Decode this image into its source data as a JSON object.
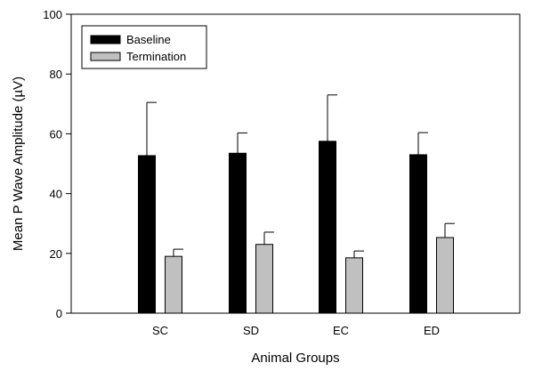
{
  "chart_data": {
    "type": "bar",
    "title": "",
    "xlabel": "Animal Groups",
    "ylabel": "Mean P Wave Amplitude (µV)",
    "ylim": [
      0,
      100
    ],
    "yticks": [
      "0",
      "20",
      "40",
      "60",
      "80",
      "100"
    ],
    "categories": [
      "SC",
      "SD",
      "EC",
      "ED"
    ],
    "series": [
      {
        "name": "Baseline",
        "color": "#000000",
        "values": [
          52.7,
          53.5,
          57.5,
          53.0
        ],
        "errors": [
          17.8,
          6.8,
          15.5,
          7.4
        ]
      },
      {
        "name": "Termination",
        "color": "#c0c0c0",
        "values": [
          19.0,
          23.0,
          18.5,
          25.3
        ],
        "errors": [
          2.4,
          4.1,
          2.3,
          4.7
        ]
      }
    ],
    "legend": {
      "position": "top-left"
    }
  }
}
